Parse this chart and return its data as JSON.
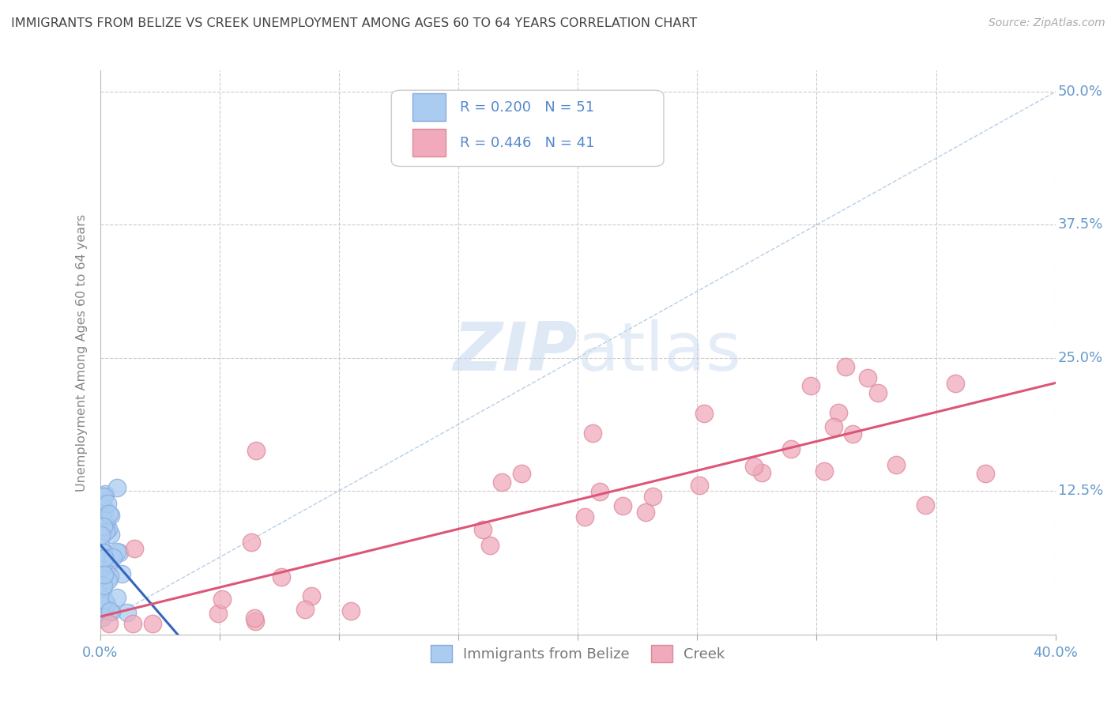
{
  "title": "IMMIGRANTS FROM BELIZE VS CREEK UNEMPLOYMENT AMONG AGES 60 TO 64 YEARS CORRELATION CHART",
  "source": "Source: ZipAtlas.com",
  "ylabel": "Unemployment Among Ages 60 to 64 years",
  "xlim": [
    0.0,
    0.4
  ],
  "ylim": [
    -0.01,
    0.52
  ],
  "xtick_positions": [
    0.0,
    0.05,
    0.1,
    0.15,
    0.2,
    0.25,
    0.3,
    0.35,
    0.4
  ],
  "ytick_positions": [
    0.0,
    0.125,
    0.25,
    0.375,
    0.5
  ],
  "series1_name": "Immigrants from Belize",
  "series1_color": "#aaccf0",
  "series1_edge_color": "#88aadd",
  "series1_r": 0.2,
  "series1_n": 51,
  "series1_line_color": "#3366bb",
  "series2_name": "Creek",
  "series2_color": "#f0aabb",
  "series2_edge_color": "#dd8899",
  "series2_r": 0.446,
  "series2_n": 41,
  "series2_line_color": "#dd5577",
  "watermark_zip": "ZIP",
  "watermark_atlas": "atlas",
  "background_color": "#ffffff",
  "grid_color": "#cccccc",
  "tick_color": "#6699cc",
  "seed": 7
}
